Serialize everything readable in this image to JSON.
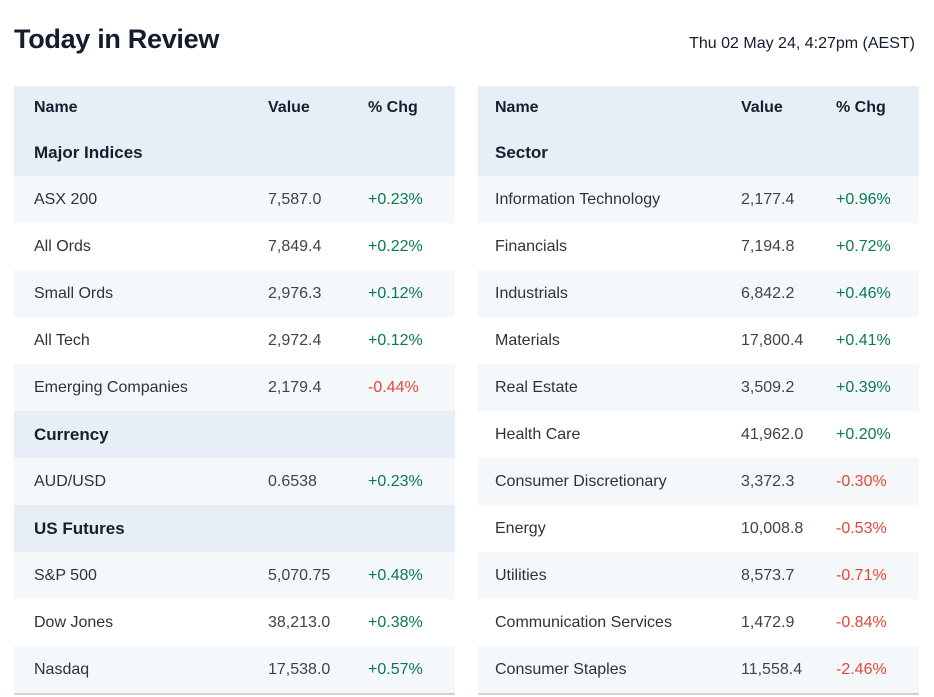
{
  "header": {
    "title": "Today in Review",
    "timestamp": "Thu 02 May 24, 4:27pm (AEST)"
  },
  "colors": {
    "positive": "#097b50",
    "negative": "#e94537",
    "header_bg": "#e8eef6",
    "stripe_bg": "#f5f8fb",
    "title_text": "#141d2c"
  },
  "tables": [
    {
      "id": "indices",
      "columns": {
        "name": "Name",
        "value": "Value",
        "chg": "% Chg"
      },
      "sections": [
        {
          "header": "Major Indices",
          "rows": [
            {
              "name": "ASX 200",
              "value": "7,587.0",
              "chg": "+0.23%"
            },
            {
              "name": "All Ords",
              "value": "7,849.4",
              "chg": "+0.22%"
            },
            {
              "name": "Small Ords",
              "value": "2,976.3",
              "chg": "+0.12%"
            },
            {
              "name": "All Tech",
              "value": "2,972.4",
              "chg": "+0.12%"
            },
            {
              "name": "Emerging Companies",
              "value": "2,179.4",
              "chg": "-0.44%"
            }
          ]
        },
        {
          "header": "Currency",
          "rows": [
            {
              "name": "AUD/USD",
              "value": "0.6538",
              "chg": "+0.23%"
            }
          ]
        },
        {
          "header": "US Futures",
          "rows": [
            {
              "name": "S&P 500",
              "value": "5,070.75",
              "chg": "+0.48%"
            },
            {
              "name": "Dow Jones",
              "value": "38,213.0",
              "chg": "+0.38%"
            },
            {
              "name": "Nasdaq",
              "value": "17,538.0",
              "chg": "+0.57%"
            }
          ]
        }
      ]
    },
    {
      "id": "sectors",
      "columns": {
        "name": "Name",
        "value": "Value",
        "chg": "% Chg"
      },
      "sections": [
        {
          "header": "Sector",
          "rows": [
            {
              "name": "Information Technology",
              "value": "2,177.4",
              "chg": "+0.96%"
            },
            {
              "name": "Financials",
              "value": "7,194.8",
              "chg": "+0.72%"
            },
            {
              "name": "Industrials",
              "value": "6,842.2",
              "chg": "+0.46%"
            },
            {
              "name": "Materials",
              "value": "17,800.4",
              "chg": "+0.41%"
            },
            {
              "name": "Real Estate",
              "value": "3,509.2",
              "chg": "+0.39%"
            },
            {
              "name": "Health Care",
              "value": "41,962.0",
              "chg": "+0.20%"
            },
            {
              "name": "Consumer Discretionary",
              "value": "3,372.3",
              "chg": "-0.30%"
            },
            {
              "name": "Energy",
              "value": "10,008.8",
              "chg": "-0.53%"
            },
            {
              "name": "Utilities",
              "value": "8,573.7",
              "chg": "-0.71%"
            },
            {
              "name": "Communication Services",
              "value": "1,472.9",
              "chg": "-0.84%"
            },
            {
              "name": "Consumer Staples",
              "value": "11,558.4",
              "chg": "-2.46%"
            }
          ]
        }
      ]
    }
  ]
}
